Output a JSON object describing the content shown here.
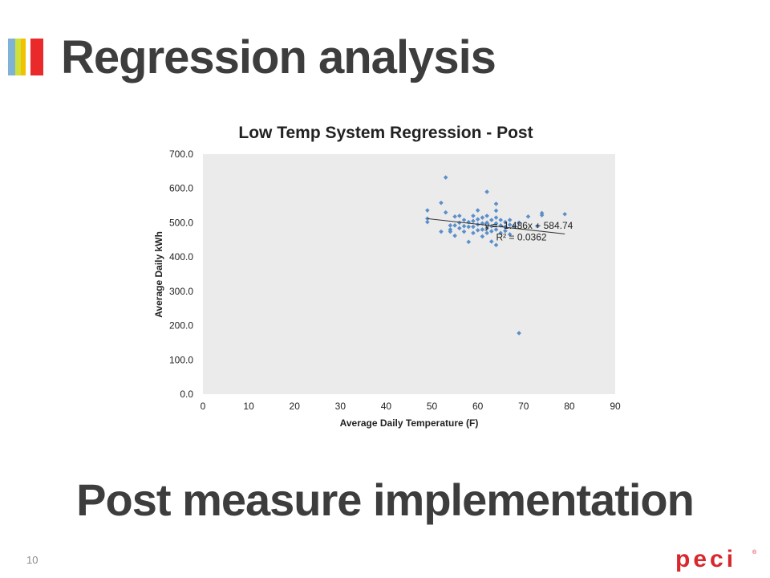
{
  "slide": {
    "title": "Regression analysis",
    "subtitle": "Post measure implementation",
    "page_number": "10",
    "accent_colors": [
      "#7fb3d6",
      "#cfe03a",
      "#f2c200",
      "#ea2a2a"
    ],
    "logo": {
      "icon": "peci-logo",
      "text": "peci",
      "color": "#d8272d"
    }
  },
  "chart_data": {
    "type": "scatter",
    "title": "Low Temp System Regression - Post",
    "xlabel": "Average Daily Temperature (F)",
    "ylabel": "Average Daily kWh",
    "xlim": [
      0,
      90
    ],
    "ylim": [
      0,
      700
    ],
    "x_ticks": [
      "0",
      "10",
      "20",
      "30",
      "40",
      "50",
      "60",
      "70",
      "80",
      "90"
    ],
    "y_ticks": [
      "0.0",
      "100.0",
      "200.0",
      "300.0",
      "400.0",
      "500.0",
      "600.0",
      "700.0"
    ],
    "grid": false,
    "legend": "none",
    "marker_color": "#5b8fc9",
    "plot_background": "#ebebeb",
    "points": [
      [
        49,
        536
      ],
      [
        49,
        512
      ],
      [
        49,
        502
      ],
      [
        52,
        558
      ],
      [
        52,
        474
      ],
      [
        53,
        632
      ],
      [
        53,
        530
      ],
      [
        54,
        492
      ],
      [
        54,
        480
      ],
      [
        54,
        474
      ],
      [
        55,
        518
      ],
      [
        55,
        492
      ],
      [
        55,
        462
      ],
      [
        56,
        520
      ],
      [
        56,
        500
      ],
      [
        56,
        484
      ],
      [
        57,
        508
      ],
      [
        57,
        490
      ],
      [
        57,
        474
      ],
      [
        58,
        502
      ],
      [
        58,
        488
      ],
      [
        58,
        444
      ],
      [
        59,
        520
      ],
      [
        59,
        505
      ],
      [
        59,
        488
      ],
      [
        59,
        470
      ],
      [
        60,
        536
      ],
      [
        60,
        510
      ],
      [
        60,
        495
      ],
      [
        60,
        478
      ],
      [
        61,
        515
      ],
      [
        61,
        498
      ],
      [
        61,
        480
      ],
      [
        61,
        460
      ],
      [
        62,
        590
      ],
      [
        62,
        520
      ],
      [
        62,
        500
      ],
      [
        62,
        484
      ],
      [
        62,
        470
      ],
      [
        63,
        508
      ],
      [
        63,
        490
      ],
      [
        63,
        475
      ],
      [
        63,
        445
      ],
      [
        64,
        555
      ],
      [
        64,
        535
      ],
      [
        64,
        515
      ],
      [
        64,
        498
      ],
      [
        64,
        480
      ],
      [
        64,
        435
      ],
      [
        65,
        508
      ],
      [
        65,
        492
      ],
      [
        65,
        470
      ],
      [
        66,
        502
      ],
      [
        66,
        488
      ],
      [
        66,
        476
      ],
      [
        67,
        508
      ],
      [
        67,
        494
      ],
      [
        67,
        466
      ],
      [
        68,
        490
      ],
      [
        69,
        178
      ],
      [
        69,
        500
      ],
      [
        71,
        518
      ],
      [
        73,
        490
      ],
      [
        74,
        528
      ],
      [
        74,
        522
      ],
      [
        79,
        525
      ]
    ],
    "trendline": {
      "slope": -1.486,
      "intercept": 584.74,
      "x_range": [
        49,
        79
      ],
      "equation": "y = -1.486x + 584.74",
      "r_squared": "R² = 0.0362"
    }
  }
}
